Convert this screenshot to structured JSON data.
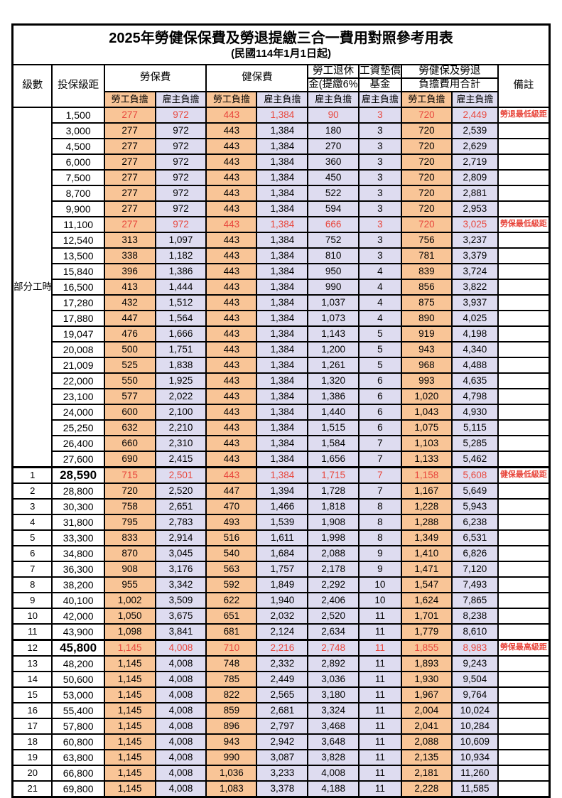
{
  "title": "2025年勞健保保費及勞退提繳三合一費用對照參考用表",
  "subtitle": "(民國114年1月1日起)",
  "header": {
    "level": "級數",
    "bracket": "投保級距",
    "labor": "勞保費",
    "health": "健保費",
    "pension_line1": "勞工退休",
    "pension_line2": "金(提繳6%)",
    "wage_fund_line1": "工資墊償",
    "wage_fund_line2": "基金",
    "total_line1": "勞健保及勞退",
    "total_line2": "負擔費用合計",
    "remark": "備註",
    "employee_burden": "勞工負擔",
    "employer_burden": "雇主負擔"
  },
  "part_time_label": "部分工時",
  "colors": {
    "employee_bg": "#F9C597",
    "employer_bg": "#DEDCF0",
    "highlight_text": "#E8473D",
    "grid": "#000000"
  },
  "rows": [
    {
      "level": "部分工時",
      "level_rowspan": 23,
      "bracket": "1,500",
      "values": [
        "277",
        "972",
        "443",
        "1,384",
        "90",
        "3",
        "720",
        "2,449"
      ],
      "note": "勞退最低級距",
      "red": true
    },
    {
      "in_group": true,
      "bracket": "3,000",
      "values": [
        "277",
        "972",
        "443",
        "1,384",
        "180",
        "3",
        "720",
        "2,539"
      ],
      "note": ""
    },
    {
      "in_group": true,
      "bracket": "4,500",
      "values": [
        "277",
        "972",
        "443",
        "1,384",
        "270",
        "3",
        "720",
        "2,629"
      ],
      "note": ""
    },
    {
      "in_group": true,
      "bracket": "6,000",
      "values": [
        "277",
        "972",
        "443",
        "1,384",
        "360",
        "3",
        "720",
        "2,719"
      ],
      "note": ""
    },
    {
      "in_group": true,
      "bracket": "7,500",
      "values": [
        "277",
        "972",
        "443",
        "1,384",
        "450",
        "3",
        "720",
        "2,809"
      ],
      "note": ""
    },
    {
      "in_group": true,
      "bracket": "8,700",
      "values": [
        "277",
        "972",
        "443",
        "1,384",
        "522",
        "3",
        "720",
        "2,881"
      ],
      "note": ""
    },
    {
      "in_group": true,
      "bracket": "9,900",
      "values": [
        "277",
        "972",
        "443",
        "1,384",
        "594",
        "3",
        "720",
        "2,953"
      ],
      "note": ""
    },
    {
      "in_group": true,
      "bracket": "11,100",
      "values": [
        "277",
        "972",
        "443",
        "1,384",
        "666",
        "3",
        "720",
        "3,025"
      ],
      "note": "勞保最低級距",
      "red": true
    },
    {
      "in_group": true,
      "bracket": "12,540",
      "values": [
        "313",
        "1,097",
        "443",
        "1,384",
        "752",
        "3",
        "756",
        "3,237"
      ],
      "note": ""
    },
    {
      "in_group": true,
      "bracket": "13,500",
      "values": [
        "338",
        "1,182",
        "443",
        "1,384",
        "810",
        "3",
        "781",
        "3,379"
      ],
      "note": ""
    },
    {
      "in_group": true,
      "bracket": "15,840",
      "values": [
        "396",
        "1,386",
        "443",
        "1,384",
        "950",
        "4",
        "839",
        "3,724"
      ],
      "note": ""
    },
    {
      "in_group": true,
      "bracket": "16,500",
      "values": [
        "413",
        "1,444",
        "443",
        "1,384",
        "990",
        "4",
        "856",
        "3,822"
      ],
      "note": ""
    },
    {
      "in_group": true,
      "bracket": "17,280",
      "values": [
        "432",
        "1,512",
        "443",
        "1,384",
        "1,037",
        "4",
        "875",
        "3,937"
      ],
      "note": ""
    },
    {
      "in_group": true,
      "bracket": "17,880",
      "values": [
        "447",
        "1,564",
        "443",
        "1,384",
        "1,073",
        "4",
        "890",
        "4,025"
      ],
      "note": ""
    },
    {
      "in_group": true,
      "bracket": "19,047",
      "values": [
        "476",
        "1,666",
        "443",
        "1,384",
        "1,143",
        "5",
        "919",
        "4,198"
      ],
      "note": ""
    },
    {
      "in_group": true,
      "bracket": "20,008",
      "values": [
        "500",
        "1,751",
        "443",
        "1,384",
        "1,200",
        "5",
        "943",
        "4,340"
      ],
      "note": ""
    },
    {
      "in_group": true,
      "bracket": "21,009",
      "values": [
        "525",
        "1,838",
        "443",
        "1,384",
        "1,261",
        "5",
        "968",
        "4,488"
      ],
      "note": ""
    },
    {
      "in_group": true,
      "bracket": "22,000",
      "values": [
        "550",
        "1,925",
        "443",
        "1,384",
        "1,320",
        "6",
        "993",
        "4,635"
      ],
      "note": ""
    },
    {
      "in_group": true,
      "bracket": "23,100",
      "values": [
        "577",
        "2,022",
        "443",
        "1,384",
        "1,386",
        "6",
        "1,020",
        "4,798"
      ],
      "note": ""
    },
    {
      "in_group": true,
      "bracket": "24,000",
      "values": [
        "600",
        "2,100",
        "443",
        "1,384",
        "1,440",
        "6",
        "1,043",
        "4,930"
      ],
      "note": ""
    },
    {
      "in_group": true,
      "bracket": "25,250",
      "values": [
        "632",
        "2,210",
        "443",
        "1,384",
        "1,515",
        "6",
        "1,075",
        "5,115"
      ],
      "note": ""
    },
    {
      "in_group": true,
      "bracket": "26,400",
      "values": [
        "660",
        "2,310",
        "443",
        "1,384",
        "1,584",
        "7",
        "1,103",
        "5,285"
      ],
      "note": ""
    },
    {
      "in_group": true,
      "bracket": "27,600",
      "values": [
        "690",
        "2,415",
        "443",
        "1,384",
        "1,656",
        "7",
        "1,133",
        "5,462"
      ],
      "note": ""
    },
    {
      "level": "1",
      "bracket": "28,590",
      "values": [
        "715",
        "2,501",
        "443",
        "1,384",
        "1,715",
        "7",
        "1,158",
        "5,608"
      ],
      "note": "健保最低級距",
      "red": true,
      "bold_bracket": true,
      "thick_top": true
    },
    {
      "level": "2",
      "bracket": "28,800",
      "values": [
        "720",
        "2,520",
        "447",
        "1,394",
        "1,728",
        "7",
        "1,167",
        "5,649"
      ],
      "note": ""
    },
    {
      "level": "3",
      "bracket": "30,300",
      "values": [
        "758",
        "2,651",
        "470",
        "1,466",
        "1,818",
        "8",
        "1,228",
        "5,943"
      ],
      "note": ""
    },
    {
      "level": "4",
      "bracket": "31,800",
      "values": [
        "795",
        "2,783",
        "493",
        "1,539",
        "1,908",
        "8",
        "1,288",
        "6,238"
      ],
      "note": ""
    },
    {
      "level": "5",
      "bracket": "33,300",
      "values": [
        "833",
        "2,914",
        "516",
        "1,611",
        "1,998",
        "8",
        "1,349",
        "6,531"
      ],
      "note": ""
    },
    {
      "level": "6",
      "bracket": "34,800",
      "values": [
        "870",
        "3,045",
        "540",
        "1,684",
        "2,088",
        "9",
        "1,410",
        "6,826"
      ],
      "note": ""
    },
    {
      "level": "7",
      "bracket": "36,300",
      "values": [
        "908",
        "3,176",
        "563",
        "1,757",
        "2,178",
        "9",
        "1,471",
        "7,120"
      ],
      "note": ""
    },
    {
      "level": "8",
      "bracket": "38,200",
      "values": [
        "955",
        "3,342",
        "592",
        "1,849",
        "2,292",
        "10",
        "1,547",
        "7,493"
      ],
      "note": ""
    },
    {
      "level": "9",
      "bracket": "40,100",
      "values": [
        "1,002",
        "3,509",
        "622",
        "1,940",
        "2,406",
        "10",
        "1,624",
        "7,865"
      ],
      "note": ""
    },
    {
      "level": "10",
      "bracket": "42,000",
      "values": [
        "1,050",
        "3,675",
        "651",
        "2,032",
        "2,520",
        "11",
        "1,701",
        "8,238"
      ],
      "note": ""
    },
    {
      "level": "11",
      "bracket": "43,900",
      "values": [
        "1,098",
        "3,841",
        "681",
        "2,124",
        "2,634",
        "11",
        "1,779",
        "8,610"
      ],
      "note": ""
    },
    {
      "level": "12",
      "bracket": "45,800",
      "values": [
        "1,145",
        "4,008",
        "710",
        "2,216",
        "2,748",
        "11",
        "1,855",
        "8,983"
      ],
      "note": "勞保最高級距",
      "red": true,
      "bold_bracket": true,
      "thick_top": true
    },
    {
      "level": "13",
      "bracket": "48,200",
      "values": [
        "1,145",
        "4,008",
        "748",
        "2,332",
        "2,892",
        "11",
        "1,893",
        "9,243"
      ],
      "note": ""
    },
    {
      "level": "14",
      "bracket": "50,600",
      "values": [
        "1,145",
        "4,008",
        "785",
        "2,449",
        "3,036",
        "11",
        "1,930",
        "9,504"
      ],
      "note": ""
    },
    {
      "level": "15",
      "bracket": "53,000",
      "values": [
        "1,145",
        "4,008",
        "822",
        "2,565",
        "3,180",
        "11",
        "1,967",
        "9,764"
      ],
      "note": ""
    },
    {
      "level": "16",
      "bracket": "55,400",
      "values": [
        "1,145",
        "4,008",
        "859",
        "2,681",
        "3,324",
        "11",
        "2,004",
        "10,024"
      ],
      "note": ""
    },
    {
      "level": "17",
      "bracket": "57,800",
      "values": [
        "1,145",
        "4,008",
        "896",
        "2,797",
        "3,468",
        "11",
        "2,041",
        "10,284"
      ],
      "note": ""
    },
    {
      "level": "18",
      "bracket": "60,800",
      "values": [
        "1,145",
        "4,008",
        "943",
        "2,942",
        "3,648",
        "11",
        "2,088",
        "10,609"
      ],
      "note": ""
    },
    {
      "level": "19",
      "bracket": "63,800",
      "values": [
        "1,145",
        "4,008",
        "990",
        "3,087",
        "3,828",
        "11",
        "2,135",
        "10,934"
      ],
      "note": ""
    },
    {
      "level": "20",
      "bracket": "66,800",
      "values": [
        "1,145",
        "4,008",
        "1,036",
        "3,233",
        "4,008",
        "11",
        "2,181",
        "11,260"
      ],
      "note": ""
    },
    {
      "level": "21",
      "bracket": "69,800",
      "values": [
        "1,145",
        "4,008",
        "1,083",
        "3,378",
        "4,188",
        "11",
        "2,228",
        "11,585"
      ],
      "note": ""
    }
  ]
}
